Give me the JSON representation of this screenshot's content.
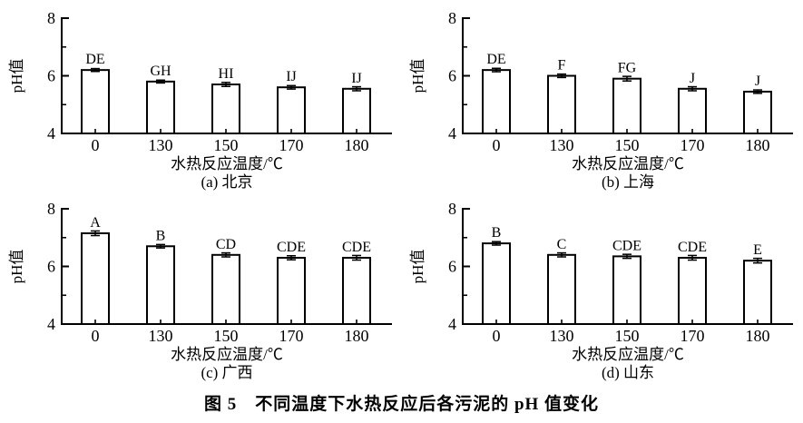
{
  "figure_caption": "图 5　不同温度下水热反应后各污泥的 pH 值变化",
  "axis_color": "#000000",
  "bar_fill": "#ffffff",
  "bar_stroke": "#000000",
  "chart_data": [
    {
      "type": "bar",
      "subplot_label": "(a) 北京",
      "xlabel": "水热反应温度/℃",
      "ylabel": "pH值",
      "ylim": [
        4,
        8
      ],
      "yticks_labeled": [
        4,
        6,
        8
      ],
      "yticks_minor": [
        5,
        7
      ],
      "categories": [
        "0",
        "130",
        "150",
        "170",
        "180"
      ],
      "values": [
        6.2,
        5.8,
        5.7,
        5.6,
        5.55
      ],
      "errors": [
        0.05,
        0.05,
        0.07,
        0.06,
        0.07
      ],
      "bar_labels": [
        "DE",
        "GH",
        "HI",
        "IJ",
        "IJ"
      ]
    },
    {
      "type": "bar",
      "subplot_label": "(b) 上海",
      "xlabel": "水热反应温度/℃",
      "ylabel": "pH值",
      "ylim": [
        4,
        8
      ],
      "yticks_labeled": [
        4,
        6,
        8
      ],
      "yticks_minor": [
        5,
        7
      ],
      "categories": [
        "0",
        "130",
        "150",
        "170",
        "180"
      ],
      "values": [
        6.2,
        6.0,
        5.9,
        5.55,
        5.45
      ],
      "errors": [
        0.06,
        0.06,
        0.08,
        0.07,
        0.06
      ],
      "bar_labels": [
        "DE",
        "F",
        "FG",
        "J",
        "J"
      ]
    },
    {
      "type": "bar",
      "subplot_label": "(c) 广西",
      "xlabel": "水热反应温度/℃",
      "ylabel": "pH值",
      "ylim": [
        4,
        8
      ],
      "yticks_labeled": [
        4,
        6,
        8
      ],
      "yticks_minor": [
        5,
        7
      ],
      "categories": [
        "0",
        "130",
        "150",
        "170",
        "180"
      ],
      "values": [
        7.15,
        6.7,
        6.4,
        6.3,
        6.3
      ],
      "errors": [
        0.08,
        0.06,
        0.07,
        0.07,
        0.08
      ],
      "bar_labels": [
        "A",
        "B",
        "CD",
        "CDE",
        "CDE"
      ]
    },
    {
      "type": "bar",
      "subplot_label": "(d) 山东",
      "xlabel": "水热反应温度/℃",
      "ylabel": "pH值",
      "ylim": [
        4,
        8
      ],
      "yticks_labeled": [
        4,
        6,
        8
      ],
      "yticks_minor": [
        5,
        7
      ],
      "categories": [
        "0",
        "130",
        "150",
        "170",
        "180"
      ],
      "values": [
        6.8,
        6.4,
        6.35,
        6.3,
        6.2
      ],
      "errors": [
        0.06,
        0.07,
        0.07,
        0.08,
        0.08
      ],
      "bar_labels": [
        "B",
        "C",
        "CDE",
        "CDE",
        "E"
      ]
    }
  ]
}
